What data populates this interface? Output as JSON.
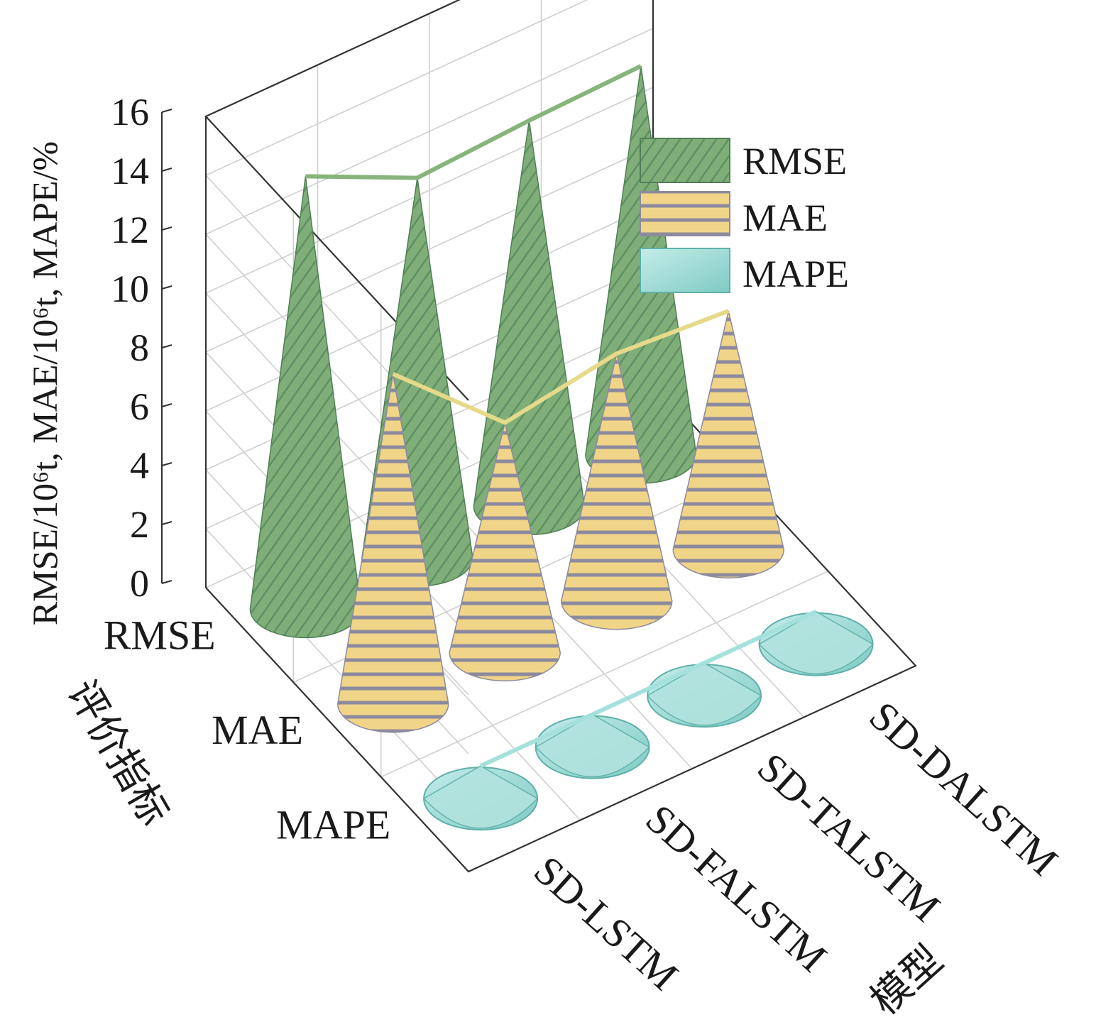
{
  "chart_data": {
    "type": "3d-cone-bar",
    "zlabel": "RMSE/10⁶t, MAE/10⁶t, MAPE/%",
    "zlim": [
      0,
      16
    ],
    "z_ticks": [
      "0",
      "2",
      "4",
      "6",
      "8",
      "10",
      "12",
      "14",
      "16"
    ],
    "x_axis_title": "模型",
    "y_axis_title": "评价指标",
    "models": [
      "SD-LSTM",
      "SD-FALSTM",
      "SD-TALSTM",
      "SD-DALSTM"
    ],
    "metrics": [
      "RMSE",
      "MAE",
      "MAPE"
    ],
    "series": [
      {
        "name": "RMSE",
        "color": "#7fae78",
        "values": [
          14.7,
          12.9,
          13.1,
          13.2
        ]
      },
      {
        "name": "MAE",
        "color": "#f0d488",
        "values": [
          11.2,
          7.8,
          8.4,
          8.1
        ]
      },
      {
        "name": "MAPE",
        "color": "#9edcd7",
        "values": [
          1.0,
          1.0,
          1.0,
          1.0
        ]
      }
    ],
    "legend_position": "top-right",
    "grid": true
  }
}
